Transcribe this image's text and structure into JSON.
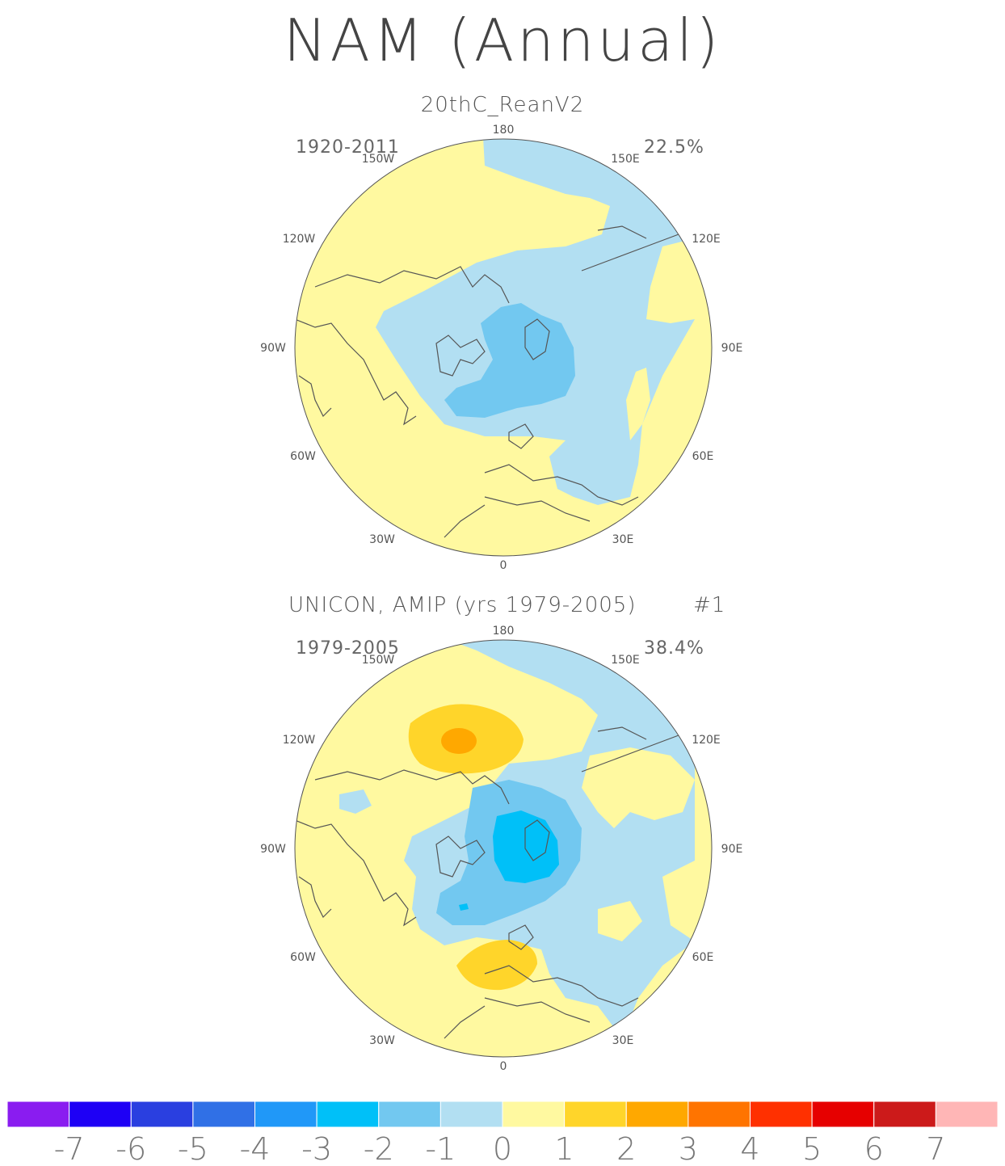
{
  "title": "NAM (Annual)",
  "panels": [
    {
      "subtitle": "20thC_ReanV2",
      "years": "1920-2011",
      "variance": "22.5%",
      "lon_labels": {
        "n180": "180",
        "w150": "150W",
        "e150": "150E",
        "w120": "120W",
        "e120": "120E",
        "w90": "90W",
        "e90": "90E",
        "w60": "60W",
        "e60": "60E",
        "w30": "30W",
        "e30": "30E",
        "zero": "0"
      }
    },
    {
      "subtitle": "UNICON, AMIP (yrs 1979-2005)",
      "run": "#1",
      "years": "1979-2005",
      "variance": "38.4%",
      "lon_labels": {
        "n180": "180",
        "w150": "150W",
        "e150": "150E",
        "w120": "120W",
        "e120": "120E",
        "w90": "90W",
        "e90": "90E",
        "w60": "60W",
        "e60": "60E",
        "w30": "30W",
        "e30": "30E",
        "zero": "0"
      }
    }
  ],
  "colorbar": {
    "colors": [
      "#8a1cf0",
      "#1e00f5",
      "#2a3fe0",
      "#3070e6",
      "#2098f8",
      "#00c0f8",
      "#72c8f0",
      "#b2dff2",
      "#fff9a0",
      "#ffd52a",
      "#ffa800",
      "#ff7400",
      "#ff3000",
      "#e60000",
      "#cc1a1a",
      "#ffb6b6"
    ],
    "labels": [
      "-7",
      "-6",
      "-5",
      "-4",
      "-3",
      "-2",
      "-1",
      "0",
      "1",
      "2",
      "3",
      "4",
      "5",
      "6",
      "7"
    ]
  },
  "legend_colors": {
    "yellow": "#fff9a0",
    "lightblue": "#b2dff2",
    "midblue": "#72c8f0",
    "cyan": "#00c0f8",
    "gold": "#ffd52a",
    "orange": "#ffa800"
  }
}
